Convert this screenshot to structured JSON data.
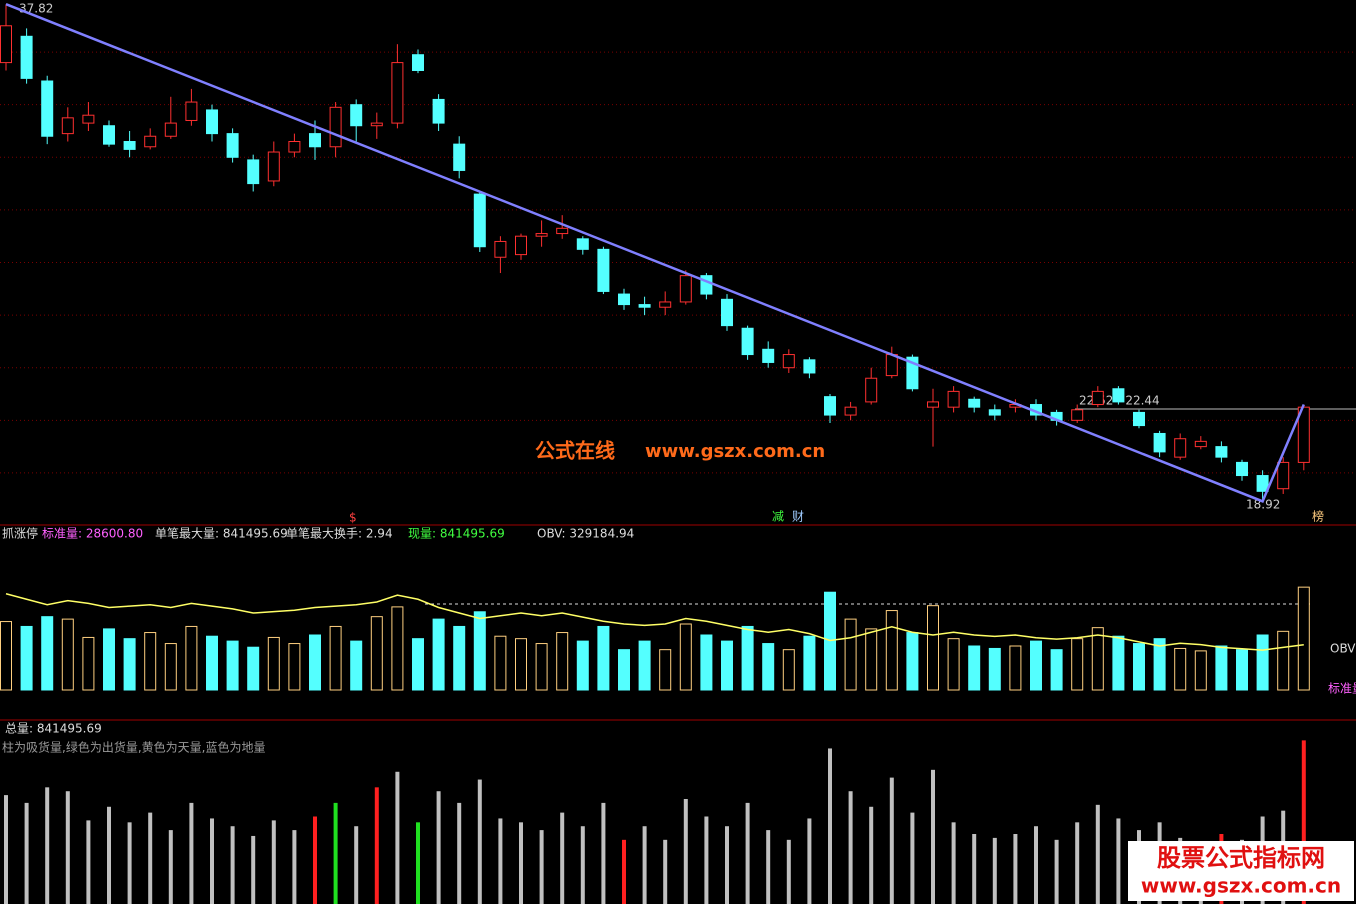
{
  "chart_data": {
    "type": "candlestick",
    "open": [
      35.6,
      36.6,
      34.9,
      32.9,
      33.3,
      33.2,
      32.6,
      32.4,
      32.8,
      33.4,
      33.8,
      32.9,
      31.9,
      31.1,
      32.2,
      32.9,
      32.4,
      34.0,
      33.2,
      33.3,
      35.9,
      34.2,
      32.5,
      30.6,
      28.2,
      28.3,
      29.0,
      29.1,
      28.9,
      28.5,
      26.8,
      26.4,
      26.3,
      26.5,
      27.5,
      26.6,
      25.5,
      24.7,
      24.0,
      24.3,
      22.9,
      22.2,
      22.7,
      23.7,
      24.4,
      22.5,
      22.5,
      22.8,
      22.4,
      22.5,
      22.6,
      22.3,
      22.0,
      22.6,
      23.2,
      22.3,
      21.5,
      20.6,
      21.0,
      21.0,
      20.4,
      19.9,
      19.4,
      20.4
    ],
    "high": [
      37.82,
      36.9,
      35.1,
      33.9,
      34.1,
      33.4,
      33.0,
      33.1,
      34.3,
      34.6,
      34.0,
      33.1,
      32.1,
      32.6,
      32.9,
      33.4,
      34.1,
      34.2,
      33.7,
      36.3,
      36.1,
      34.4,
      32.8,
      30.7,
      29.0,
      29.1,
      29.6,
      29.8,
      29.0,
      28.6,
      27.0,
      26.7,
      26.9,
      27.7,
      27.6,
      26.8,
      25.6,
      25.0,
      24.7,
      24.4,
      23.0,
      22.7,
      24.0,
      24.8,
      24.5,
      23.2,
      23.3,
      22.9,
      22.6,
      22.8,
      22.8,
      22.4,
      22.6,
      23.3,
      23.3,
      22.4,
      21.6,
      21.5,
      21.4,
      21.2,
      20.5,
      20.1,
      20.6,
      22.6
    ],
    "low": [
      35.3,
      34.8,
      32.5,
      32.6,
      33.0,
      32.4,
      32.0,
      32.3,
      32.7,
      33.2,
      32.6,
      31.8,
      30.7,
      30.9,
      32.0,
      31.9,
      32.0,
      32.6,
      32.7,
      33.1,
      35.2,
      33.0,
      31.2,
      28.4,
      27.6,
      28.1,
      28.6,
      28.9,
      28.3,
      26.8,
      26.2,
      26.0,
      26.0,
      26.4,
      26.6,
      25.4,
      24.3,
      24.0,
      23.8,
      23.6,
      21.9,
      22.0,
      22.6,
      23.6,
      23.1,
      21.0,
      22.3,
      22.3,
      22.0,
      22.3,
      22.0,
      21.8,
      21.9,
      22.5,
      22.6,
      21.7,
      20.6,
      20.5,
      20.9,
      20.4,
      19.7,
      18.92,
      19.2,
      20.1
    ],
    "close": [
      37.0,
      35.0,
      32.8,
      33.5,
      33.6,
      32.5,
      32.3,
      32.8,
      33.3,
      34.1,
      32.9,
      32.0,
      31.0,
      32.2,
      32.6,
      32.4,
      33.9,
      33.2,
      33.3,
      35.6,
      35.3,
      33.3,
      31.5,
      28.6,
      28.8,
      29.0,
      29.1,
      29.3,
      28.5,
      26.9,
      26.4,
      26.3,
      26.5,
      27.5,
      26.8,
      25.6,
      24.5,
      24.2,
      24.5,
      23.8,
      22.2,
      22.5,
      23.6,
      24.5,
      23.2,
      22.7,
      23.1,
      22.5,
      22.2,
      22.6,
      22.2,
      22.0,
      22.4,
      23.1,
      22.7,
      21.8,
      20.8,
      21.3,
      21.2,
      20.6,
      19.9,
      19.3,
      20.4,
      22.5
    ],
    "up_color": "#ff3030",
    "down_color": "#54ffff",
    "line_color": "#8080ff",
    "ylim": [
      18.02,
      37.98
    ],
    "gridlines": [
      20,
      22,
      24,
      26,
      28,
      30,
      32,
      34,
      36
    ],
    "high_label": "37.82",
    "low_label": "18.92",
    "range_label": "22.52 - 22.44",
    "watermark": [
      "公式在线",
      "www.gszx.com.cn"
    ],
    "markers": [
      "$",
      "减",
      "财",
      "榜"
    ],
    "indicator": {
      "title": "抓涨停",
      "standard": "标准量: 28600.80",
      "max_volume": "单笔最大量: 841495.69",
      "max_turnover": "单笔最大换手: 2.94",
      "current": "现量: 841495.69",
      "obv_text": "OBV: 329184.94",
      "obv_tag": "OBV",
      "standard_tag": "标准量"
    },
    "volume": [
      560000,
      520000,
      600000,
      580000,
      430000,
      500000,
      420000,
      470000,
      380000,
      520000,
      440000,
      400000,
      350000,
      430000,
      380000,
      450000,
      520000,
      400000,
      600000,
      680000,
      420000,
      580000,
      520000,
      640000,
      440000,
      420000,
      380000,
      470000,
      400000,
      520000,
      330000,
      400000,
      330000,
      540000,
      450000,
      400000,
      520000,
      380000,
      330000,
      440000,
      800000,
      580000,
      500000,
      650000,
      470000,
      690000,
      420000,
      360000,
      340000,
      360000,
      400000,
      330000,
      420000,
      510000,
      440000,
      380000,
      420000,
      340000,
      320000,
      360000,
      330000,
      450000,
      480000,
      841495.69
    ],
    "volume_lim": [
      0,
      900000
    ],
    "obv": [
      700000,
      660000,
      620000,
      650000,
      630000,
      600000,
      610000,
      620000,
      600000,
      630000,
      610000,
      590000,
      560000,
      570000,
      580000,
      600000,
      610000,
      620000,
      640000,
      690000,
      660000,
      600000,
      560000,
      520000,
      540000,
      560000,
      540000,
      560000,
      530000,
      500000,
      480000,
      470000,
      480000,
      520000,
      500000,
      470000,
      440000,
      420000,
      440000,
      410000,
      360000,
      380000,
      420000,
      460000,
      420000,
      400000,
      420000,
      400000,
      390000,
      400000,
      380000,
      370000,
      380000,
      400000,
      380000,
      350000,
      320000,
      340000,
      330000,
      310000,
      300000,
      290000,
      310000,
      329184.94
    ],
    "obv_lim": [
      0,
      800000
    ],
    "obv_color": "#ffff66",
    "total_text": "总量: 841495.69",
    "legend_text": "柱为吸货量,绿色为出货量,黄色为天量,蓝色为地量",
    "flow_colors": [
      "#c0c0c0",
      "#c0c0c0",
      "#c0c0c0",
      "#c0c0c0",
      "#c0c0c0",
      "#c0c0c0",
      "#c0c0c0",
      "#c0c0c0",
      "#c0c0c0",
      "#c0c0c0",
      "#c0c0c0",
      "#c0c0c0",
      "#c0c0c0",
      "#c0c0c0",
      "#c0c0c0",
      "#ff2020",
      "#20e020",
      "#c0c0c0",
      "#ff2020",
      "#c0c0c0",
      "#20e020",
      "#c0c0c0",
      "#c0c0c0",
      "#c0c0c0",
      "#c0c0c0",
      "#c0c0c0",
      "#c0c0c0",
      "#c0c0c0",
      "#c0c0c0",
      "#c0c0c0",
      "#ff2020",
      "#c0c0c0",
      "#c0c0c0",
      "#c0c0c0",
      "#c0c0c0",
      "#c0c0c0",
      "#c0c0c0",
      "#c0c0c0",
      "#c0c0c0",
      "#c0c0c0",
      "#c0c0c0",
      "#c0c0c0",
      "#c0c0c0",
      "#c0c0c0",
      "#c0c0c0",
      "#c0c0c0",
      "#c0c0c0",
      "#c0c0c0",
      "#c0c0c0",
      "#c0c0c0",
      "#c0c0c0",
      "#c0c0c0",
      "#c0c0c0",
      "#c0c0c0",
      "#c0c0c0",
      "#c0c0c0",
      "#c0c0c0",
      "#c0c0c0",
      "#c0c0c0",
      "#ff2020",
      "#c0c0c0",
      "#c0c0c0",
      "#c0c0c0",
      "#ff2020"
    ],
    "footer_watermark": [
      "股票公式指标网",
      "www.gszx.com.cn"
    ]
  }
}
